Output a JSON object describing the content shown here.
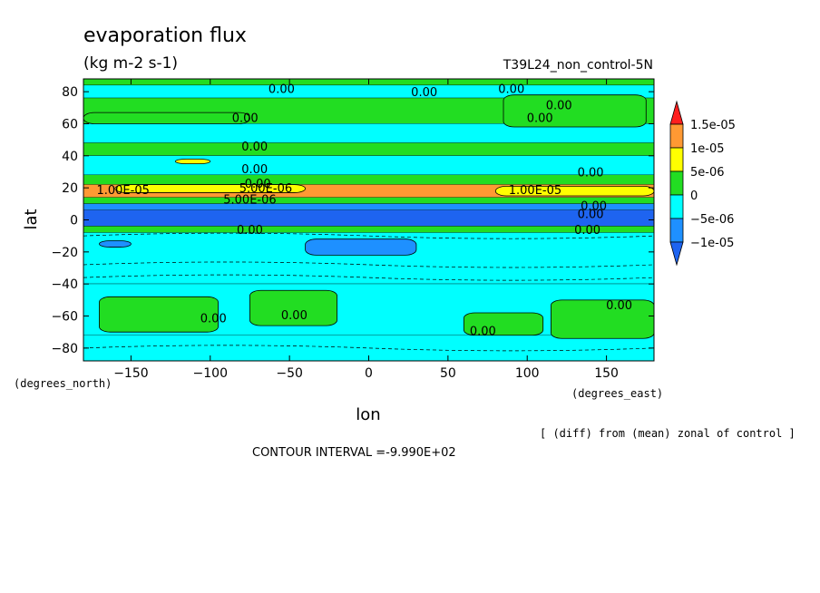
{
  "chart_data": {
    "type": "heatmap",
    "title": "evaporation flux",
    "units": "(kg m-2 s-1)",
    "run_label": "T39L24_non_control-5N",
    "xlabel": "lon",
    "ylabel": "lat",
    "x_units_label": "(degrees_east)",
    "y_units_label": "(degrees_north)",
    "xlim": [
      -180,
      180
    ],
    "ylim": [
      -88,
      88
    ],
    "x_ticks": [
      -150,
      -100,
      -50,
      0,
      50,
      100,
      150
    ],
    "y_ticks": [
      80,
      60,
      40,
      20,
      0,
      -20,
      -40,
      -60,
      -80
    ],
    "note": "[ (diff) from (mean) zonal of control ]",
    "contour_interval": "CONTOUR INTERVAL =-9.990E+02",
    "legend": {
      "levels": [
        "1.5e-05",
        "1e-05",
        "5e-06",
        "0",
        "-5e-06",
        "-1e-05"
      ],
      "colors": {
        "above": "#ff1e1e",
        "1e-05..1.5e-05": "#ff9933",
        "5e-06..1e-05": "#ffff00",
        "0..5e-06": "#22dd22",
        "-5e-06..0": "#00ffff",
        "-1e-05..-5e-06": "#1e90ff",
        "below": "#1e64f0"
      }
    },
    "bands": [
      {
        "lat_from": 88,
        "lat_to": 84,
        "level": "0..5e-06"
      },
      {
        "lat_from": 84,
        "lat_to": 76,
        "level": "-5e-06..0"
      },
      {
        "lat_from": 76,
        "lat_to": 60,
        "level": "0..5e-06"
      },
      {
        "lat_from": 60,
        "lat_to": 48,
        "level": "-5e-06..0"
      },
      {
        "lat_from": 48,
        "lat_to": 40,
        "level": "0..5e-06"
      },
      {
        "lat_from": 40,
        "lat_to": 28,
        "level": "-5e-06..0"
      },
      {
        "lat_from": 28,
        "lat_to": 22,
        "level": "0..5e-06"
      },
      {
        "lat_from": 22,
        "lat_to": 14,
        "level": "1e-05..1.5e-05"
      },
      {
        "lat_from": 14,
        "lat_to": 10,
        "level": "0..5e-06"
      },
      {
        "lat_from": 10,
        "lat_to": 6,
        "level": "-1e-05..-5e-06"
      },
      {
        "lat_from": 6,
        "lat_to": -4,
        "level": "below"
      },
      {
        "lat_from": -4,
        "lat_to": -8,
        "level": "0..5e-06"
      },
      {
        "lat_from": -8,
        "lat_to": -40,
        "level": "-5e-06..0"
      },
      {
        "lat_from": -40,
        "lat_to": -72,
        "level": "-5e-06..0"
      },
      {
        "lat_from": -72,
        "lat_to": -88,
        "level": "-5e-06..0"
      }
    ],
    "patches": [
      {
        "lon_from": -180,
        "lon_to": -75,
        "lat_from": 67,
        "lat_to": 60,
        "level": "0..5e-06"
      },
      {
        "lon_from": -122,
        "lon_to": -100,
        "lat_from": 38,
        "lat_to": 35,
        "level": "5e-06..1e-05"
      },
      {
        "lon_from": -160,
        "lon_to": -40,
        "lat_from": 22,
        "lat_to": 17,
        "level": "5e-06..1e-05"
      },
      {
        "lon_from": 80,
        "lon_to": 180,
        "lat_from": 21,
        "lat_to": 15,
        "level": "5e-06..1e-05"
      },
      {
        "lon_from": -170,
        "lon_to": -150,
        "lat_from": -13,
        "lat_to": -17,
        "level": "-1e-05..-5e-06"
      },
      {
        "lon_from": -40,
        "lon_to": 30,
        "lat_from": -12,
        "lat_to": -22,
        "level": "-1e-05..-5e-06"
      },
      {
        "lon_from": -170,
        "lon_to": -95,
        "lat_from": -48,
        "lat_to": -70,
        "level": "0..5e-06"
      },
      {
        "lon_from": -75,
        "lon_to": -20,
        "lat_from": -44,
        "lat_to": -66,
        "level": "0..5e-06"
      },
      {
        "lon_from": 60,
        "lon_to": 110,
        "lat_from": -58,
        "lat_to": -72,
        "level": "0..5e-06"
      },
      {
        "lon_from": 115,
        "lon_to": 180,
        "lat_from": -50,
        "lat_to": -74,
        "level": "0..5e-06"
      },
      {
        "lon_from": 85,
        "lon_to": 175,
        "lat_from": 78,
        "lat_to": 58,
        "level": "0..5e-06"
      }
    ],
    "contour_labels": [
      {
        "text": "0.00",
        "lon": -55,
        "lat": 82
      },
      {
        "text": "0.00",
        "lon": 35,
        "lat": 80
      },
      {
        "text": "0.00",
        "lon": 90,
        "lat": 82
      },
      {
        "text": "0.00",
        "lon": 120,
        "lat": 72
      },
      {
        "text": "0.00",
        "lon": 108,
        "lat": 64
      },
      {
        "text": "0.00",
        "lon": -78,
        "lat": 64
      },
      {
        "text": "0.00",
        "lon": -72,
        "lat": 46
      },
      {
        "text": "0.00",
        "lon": -72,
        "lat": 32
      },
      {
        "text": "0.00",
        "lon": -70,
        "lat": 23
      },
      {
        "text": "0.00",
        "lon": 140,
        "lat": 30
      },
      {
        "text": "1.00E-05",
        "lon": -155,
        "lat": 19
      },
      {
        "text": "1.00E-05",
        "lon": 105,
        "lat": 19
      },
      {
        "text": "5.00E-06",
        "lon": -65,
        "lat": 20
      },
      {
        "text": "5.00E-06",
        "lon": -75,
        "lat": 13
      },
      {
        "text": "0.00",
        "lon": 142,
        "lat": 9
      },
      {
        "text": "0.00",
        "lon": 140,
        "lat": 4
      },
      {
        "text": "0.00",
        "lon": -75,
        "lat": -6
      },
      {
        "text": "0.00",
        "lon": 138,
        "lat": -6
      },
      {
        "text": "0.00",
        "lon": -98,
        "lat": -61
      },
      {
        "text": "0.00",
        "lon": -47,
        "lat": -59
      },
      {
        "text": "0.00",
        "lon": 72,
        "lat": -69
      },
      {
        "text": "0.00",
        "lon": 158,
        "lat": -53
      }
    ]
  }
}
